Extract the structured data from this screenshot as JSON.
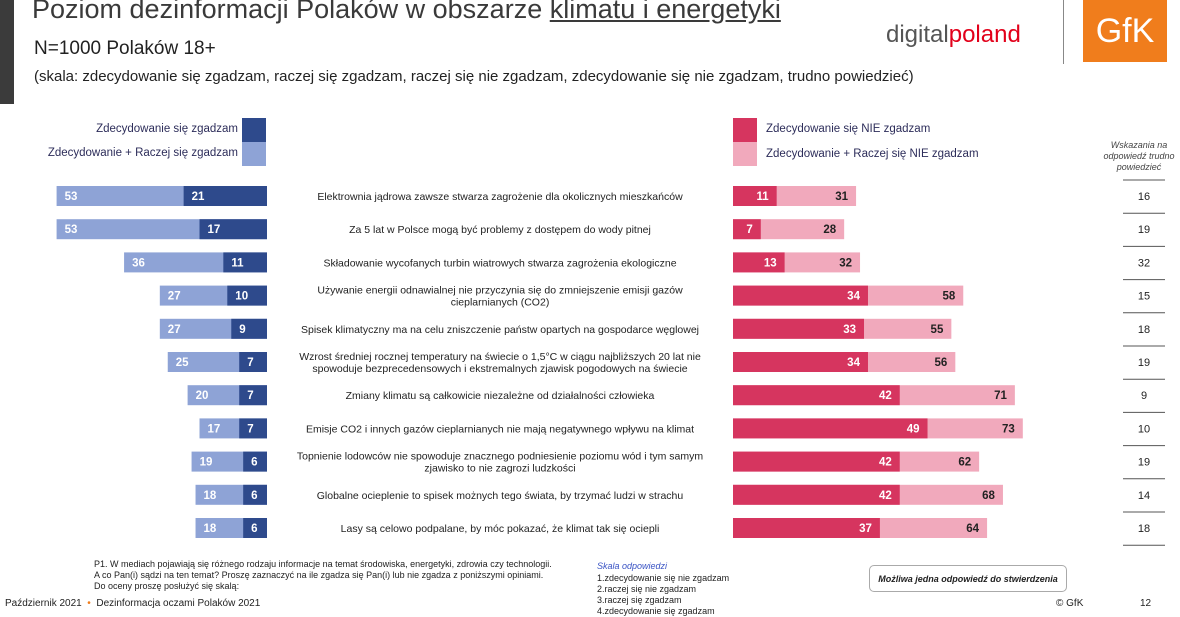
{
  "header": {
    "title_prefix": "Poziom dezinformacji Polaków w obszarze",
    "title_underlined": "klimatu i energetyki",
    "subtitle": "N=1000 Polaków 18+",
    "scale": "(skala: zdecydowanie się zgadzam, raczej się zgadzam, raczej się nie zgadzam, zdecydowanie się nie zgadzam, trudno powiedzieć)",
    "logo_dp_main": "digital",
    "logo_dp_accent": "poland",
    "logo_gfk": "GfK"
  },
  "legend": {
    "agree_strong": "Zdecydowanie się zgadzam",
    "agree_total": "Zdecydowanie + Raczej się zgadzam",
    "disagree_strong": "Zdecydowanie się NIE zgadzam",
    "disagree_total": "Zdecydowanie + Raczej się NIE zgadzam",
    "dont_know": "Wskazania na odpowiedź trudno powiedzieć"
  },
  "colors": {
    "agree_strong": "#2e4a8c",
    "agree_total": "#8ea3d6",
    "disagree_strong": "#d6355f",
    "disagree_total": "#f1a9bc",
    "accent": "#f07d1c"
  },
  "chart_data": {
    "type": "bar",
    "orientation": "horizontal-diverging",
    "categories": [
      [
        "Elektrownia jądrowa zawsze stwarza zagrożenie dla okolicznych mieszkańców"
      ],
      [
        "Za 5 lat w Polsce mogą być problemy z dostępem do wody pitnej"
      ],
      [
        "Składowanie wycofanych turbin wiatrowych stwarza zagrożenia ekologiczne"
      ],
      [
        "Używanie energii odnawialnej nie przyczynia się do zmniejszenie emisji gazów",
        "cieplarnianych (CO2)"
      ],
      [
        "Spisek klimatyczny ma na celu zniszczenie państw opartych na gospodarce węglowej"
      ],
      [
        "Wzrost średniej rocznej temperatury na świecie o 1,5°C w ciągu najbliższych 20 lat nie",
        "spowoduje bezprecedensowych i ekstremalnych zjawisk pogodowych na świecie"
      ],
      [
        "Zmiany klimatu są całkowicie niezależne od działalności człowieka"
      ],
      [
        "Emisje CO2 i innych gazów cieplarnianych nie mają negatywnego wpływu na klimat"
      ],
      [
        "Topnienie lodowców nie spowoduje znacznego podniesienie poziomu wód i tym samym",
        "zjawisko to nie zagrozi ludzkości"
      ],
      [
        "Globalne ocieplenie to spisek możnych tego świata, by trzymać ludzi w strachu"
      ],
      [
        "Lasy są celowo podpalane, by móc pokazać, że klimat tak się ociepli"
      ]
    ],
    "series": [
      {
        "name": "Zdecydowanie się zgadzam",
        "values": [
          21,
          17,
          11,
          10,
          9,
          7,
          7,
          7,
          6,
          6,
          6
        ]
      },
      {
        "name": "Zdecydowanie + Raczej się zgadzam",
        "values": [
          53,
          53,
          36,
          27,
          27,
          25,
          20,
          17,
          19,
          18,
          18
        ]
      },
      {
        "name": "Zdecydowanie się NIE zgadzam",
        "values": [
          11,
          7,
          13,
          34,
          33,
          34,
          42,
          49,
          42,
          42,
          37
        ]
      },
      {
        "name": "Zdecydowanie + Raczej się NIE zgadzam",
        "values": [
          31,
          28,
          32,
          58,
          55,
          56,
          71,
          73,
          62,
          68,
          64
        ]
      },
      {
        "name": "Wskazania na odpowiedź trudno powiedzieć",
        "values": [
          16,
          19,
          32,
          15,
          18,
          19,
          9,
          10,
          19,
          14,
          18
        ]
      }
    ],
    "xlim": [
      0,
      73
    ]
  },
  "footer": {
    "question": [
      "P1. W mediach pojawiają się różnego rodzaju informacje na temat środowiska, energetyki, zdrowia czy technologii.",
      "A co Pan(i) sądzi na ten temat? Proszę zaznaczyć na ile zgadza się Pan(i) lub nie zgadza z poniższymi opiniami.",
      "Do oceny proszę posłużyć się skalą:"
    ],
    "skala_title": "Skala odpowiedzi",
    "skala_items": [
      "1.zdecydowanie się nie zgadzam",
      "2.raczej się nie zgadzam",
      "3.raczej się zgadzam",
      "4.zdecydowanie się zgadzam"
    ],
    "note": "Możliwa jedna odpowiedź do stwierdzenia",
    "date": "Październik 2021",
    "report": "Dezinformacja oczami Polaków 2021",
    "copyright": "© GfK",
    "page": "12"
  }
}
